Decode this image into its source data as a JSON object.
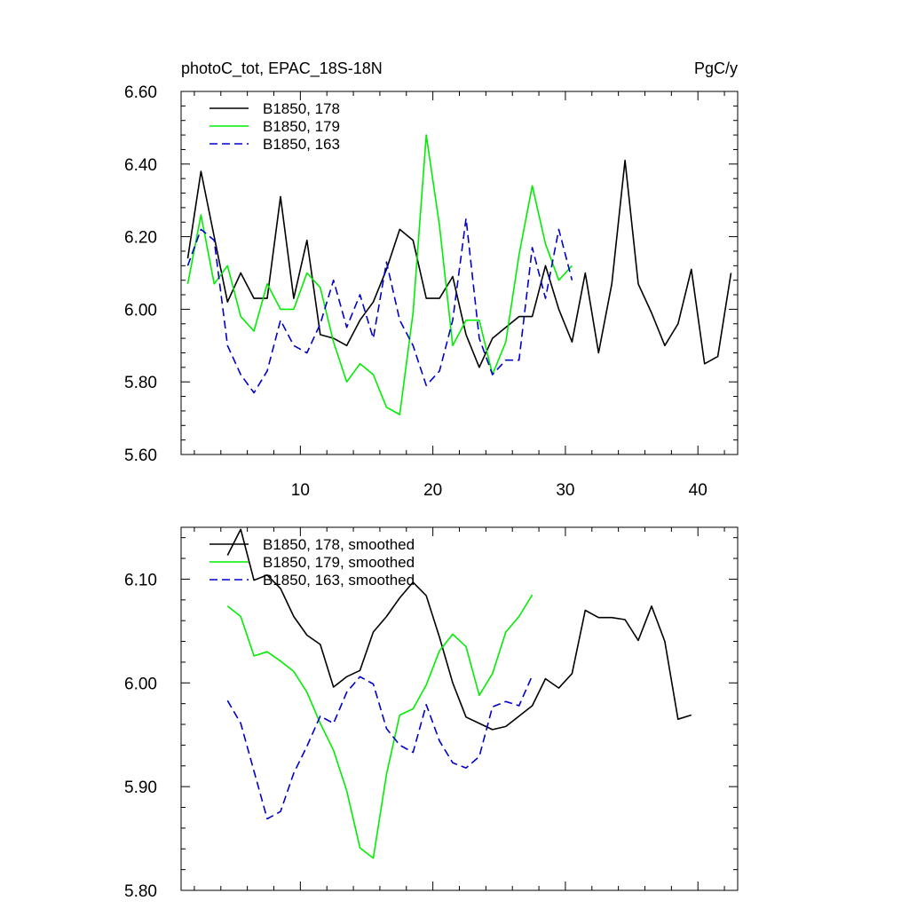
{
  "chart_data": [
    {
      "type": "line",
      "title": "photoC_tot, EPAC_18S-18N",
      "title_right": "PgC/y",
      "xlabel": "",
      "ylabel": "",
      "xlim": [
        1,
        43
      ],
      "ylim": [
        5.6,
        6.6
      ],
      "x_ticks": [
        10,
        20,
        30,
        40
      ],
      "x_tick_labels": [
        "10",
        "20",
        "30",
        "40"
      ],
      "y_ticks": [
        5.6,
        5.8,
        6.0,
        6.2,
        6.4,
        6.6
      ],
      "y_tick_labels": [
        "5.60",
        "5.80",
        "6.00",
        "6.20",
        "6.40",
        "6.60"
      ],
      "grid": false,
      "legend_position": "top-left",
      "series": [
        {
          "name": "B1850, 178",
          "color": "#000000",
          "dash": "solid",
          "x": [
            1.5,
            2.5,
            3.5,
            4.5,
            5.5,
            6.5,
            7.5,
            8.5,
            9.5,
            10.5,
            11.5,
            12.5,
            13.5,
            14.5,
            15.5,
            16.5,
            17.5,
            18.5,
            19.5,
            20.5,
            21.5,
            22.5,
            23.5,
            24.5,
            25.5,
            26.5,
            27.5,
            28.5,
            29.5,
            30.5,
            31.5,
            32.5,
            33.5,
            34.5,
            35.5,
            36.5,
            37.5,
            38.5,
            39.5,
            40.5,
            41.5,
            42.5
          ],
          "values": [
            6.14,
            6.38,
            6.2,
            6.02,
            6.1,
            6.03,
            6.03,
            6.31,
            6.03,
            6.19,
            5.93,
            5.92,
            5.9,
            5.97,
            6.02,
            6.11,
            6.22,
            6.19,
            6.03,
            6.03,
            6.09,
            5.93,
            5.84,
            5.92,
            5.95,
            5.98,
            5.98,
            6.12,
            6.0,
            5.91,
            6.1,
            5.88,
            6.07,
            6.41,
            6.07,
            5.99,
            5.9,
            5.96,
            6.11,
            5.85,
            5.87,
            6.1
          ]
        },
        {
          "name": "B1850, 179",
          "color": "#00ee00",
          "dash": "solid",
          "x": [
            1.5,
            2.5,
            3.5,
            4.5,
            5.5,
            6.5,
            7.5,
            8.5,
            9.5,
            10.5,
            11.5,
            12.5,
            13.5,
            14.5,
            15.5,
            16.5,
            17.5,
            18.5,
            19.5,
            20.5,
            21.5,
            22.5,
            23.5,
            24.5,
            25.5,
            26.5,
            27.5,
            28.5,
            29.5,
            30.5
          ],
          "values": [
            6.07,
            6.26,
            6.07,
            6.12,
            5.98,
            5.94,
            6.07,
            6.0,
            6.0,
            6.1,
            6.06,
            5.91,
            5.8,
            5.85,
            5.82,
            5.73,
            5.71,
            5.99,
            6.48,
            6.23,
            5.9,
            5.97,
            5.97,
            5.82,
            5.91,
            6.15,
            6.34,
            6.18,
            6.08,
            6.12
          ]
        },
        {
          "name": "B1850, 163",
          "color": "#0000cc",
          "dash": "dashed",
          "x": [
            1.5,
            2.5,
            3.5,
            4.5,
            5.5,
            6.5,
            7.5,
            8.5,
            9.5,
            10.5,
            11.5,
            12.5,
            13.5,
            14.5,
            15.5,
            16.5,
            17.5,
            18.5,
            19.5,
            20.5,
            21.5,
            22.5,
            23.5,
            24.5,
            25.5,
            26.5,
            27.5,
            28.5,
            29.5,
            30.5
          ],
          "values": [
            6.12,
            6.22,
            6.19,
            5.9,
            5.82,
            5.77,
            5.83,
            5.97,
            5.9,
            5.88,
            5.96,
            6.08,
            5.95,
            6.04,
            5.92,
            6.13,
            5.97,
            5.9,
            5.79,
            5.83,
            5.97,
            6.25,
            5.92,
            5.82,
            5.86,
            5.86,
            6.17,
            6.03,
            6.22,
            6.08
          ]
        }
      ]
    },
    {
      "type": "line",
      "title": "",
      "xlabel": "",
      "ylabel": "",
      "xlim": [
        1,
        43
      ],
      "ylim": [
        5.8,
        6.15
      ],
      "x_ticks": [
        10,
        20,
        30,
        40
      ],
      "x_tick_labels": [
        "",
        "",
        "",
        ""
      ],
      "y_ticks": [
        5.8,
        5.9,
        6.0,
        6.1
      ],
      "y_tick_labels": [
        "5.80",
        "5.90",
        "6.00",
        "6.10"
      ],
      "grid": false,
      "legend_position": "top-left",
      "series": [
        {
          "name": "B1850, 178, smoothed",
          "color": "#000000",
          "dash": "solid",
          "x": [
            4.5,
            5.5,
            6.5,
            7.5,
            8.5,
            9.5,
            10.5,
            11.5,
            12.5,
            13.5,
            14.5,
            15.5,
            16.5,
            17.5,
            18.5,
            19.5,
            20.5,
            21.5,
            22.5,
            23.5,
            24.5,
            25.5,
            26.5,
            27.5,
            28.5,
            29.5,
            30.5,
            31.5,
            32.5,
            33.5,
            34.5,
            35.5,
            36.5,
            37.5,
            38.5,
            39.5
          ],
          "values": [
            6.123,
            6.148,
            6.099,
            6.104,
            6.091,
            6.064,
            6.046,
            6.037,
            5.996,
            6.006,
            6.012,
            6.049,
            6.064,
            6.082,
            6.097,
            6.084,
            6.044,
            6.0,
            5.967,
            5.961,
            5.955,
            5.958,
            5.968,
            5.978,
            6.004,
            5.995,
            6.009,
            6.07,
            6.063,
            6.063,
            6.061,
            6.041,
            6.074,
            6.04,
            5.965,
            5.969
          ]
        },
        {
          "name": "B1850, 179, smoothed",
          "color": "#00ee00",
          "dash": "solid",
          "x": [
            4.5,
            5.5,
            6.5,
            7.5,
            8.5,
            9.5,
            10.5,
            11.5,
            12.5,
            13.5,
            14.5,
            15.5,
            16.5,
            17.5,
            18.5,
            19.5,
            20.5,
            21.5,
            22.5,
            23.5,
            24.5,
            25.5,
            26.5,
            27.5
          ],
          "values": [
            6.074,
            6.064,
            6.026,
            6.03,
            6.021,
            6.011,
            5.991,
            5.961,
            5.935,
            5.896,
            5.841,
            5.831,
            5.912,
            5.969,
            5.975,
            5.998,
            6.031,
            6.047,
            6.035,
            5.988,
            6.009,
            6.049,
            6.064,
            6.085
          ]
        },
        {
          "name": "B1850, 163, smoothed",
          "color": "#0000cc",
          "dash": "dashed",
          "x": [
            4.5,
            5.5,
            6.5,
            7.5,
            8.5,
            9.5,
            10.5,
            11.5,
            12.5,
            13.5,
            14.5,
            15.5,
            16.5,
            17.5,
            18.5,
            19.5,
            20.5,
            21.5,
            22.5,
            23.5,
            24.5,
            25.5,
            26.5,
            27.5
          ],
          "values": [
            5.983,
            5.961,
            5.915,
            5.869,
            5.876,
            5.913,
            5.939,
            5.968,
            5.961,
            5.991,
            6.006,
            5.999,
            5.956,
            5.94,
            5.933,
            5.979,
            5.944,
            5.923,
            5.918,
            5.929,
            5.977,
            5.982,
            5.978,
            6.007
          ]
        }
      ]
    }
  ]
}
